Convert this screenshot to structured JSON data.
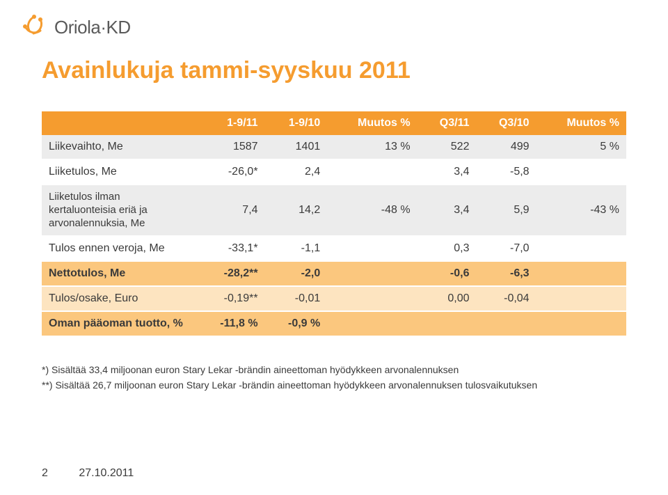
{
  "logo": {
    "text": "Oriola·KD"
  },
  "title": "Avainlukuja tammi-syyskuu 2011",
  "table": {
    "headers": [
      "",
      "1-9/11",
      "1-9/10",
      "Muutos %",
      "Q3/11",
      "Q3/10",
      "Muutos %"
    ],
    "rows": [
      {
        "style": "grey",
        "cells": [
          "Liikevaihto, Me",
          "1587",
          "1401",
          "13 %",
          "522",
          "499",
          "5 %"
        ]
      },
      {
        "style": "white",
        "cells": [
          "Liiketulos, Me",
          "-26,0*",
          "2,4",
          "",
          "3,4",
          "-5,8",
          ""
        ]
      },
      {
        "style": "grey",
        "cells": [
          "Liiketulos ilman\nkertaluonteisia eriä ja\narvonalennuksia, Me",
          "7,4",
          "14,2",
          "-48 %",
          "3,4",
          "5,9",
          "-43 %"
        ]
      },
      {
        "style": "white",
        "cells": [
          "Tulos ennen veroja, Me",
          "-33,1*",
          "-1,1",
          "",
          "0,3",
          "-7,0",
          ""
        ]
      },
      {
        "style": "orange-mid",
        "cells": [
          "Nettotulos, Me",
          "-28,2**",
          "-2,0",
          "",
          "-0,6",
          "-6,3",
          ""
        ]
      },
      {
        "style": "orange-light",
        "cells": [
          "Tulos/osake, Euro",
          "-0,19**",
          "-0,01",
          "",
          "0,00",
          "-0,04",
          ""
        ]
      },
      {
        "style": "orange-mid",
        "cells": [
          "Oman pääoman tuotto, %",
          "-11,8 %",
          "-0,9 %",
          "",
          "",
          "",
          ""
        ]
      }
    ]
  },
  "footnotes": {
    "line1": "*)   Sisältää 33,4 miljoonan euron Stary Lekar -brändin aineettoman hyödykkeen arvonalennuksen",
    "line2": "**) Sisältää 26,7 miljoonan euron Stary Lekar -brändin aineettoman hyödykkeen arvonalennuksen tulosvaikutuksen"
  },
  "footer": {
    "page": "2",
    "date": "27.10.2011"
  },
  "colors": {
    "accent": "#f59c2f",
    "row_grey": "#ececec",
    "row_orange_mid": "#fbc77e",
    "row_orange_light": "#fde4c0",
    "text": "#3a3a3a"
  }
}
